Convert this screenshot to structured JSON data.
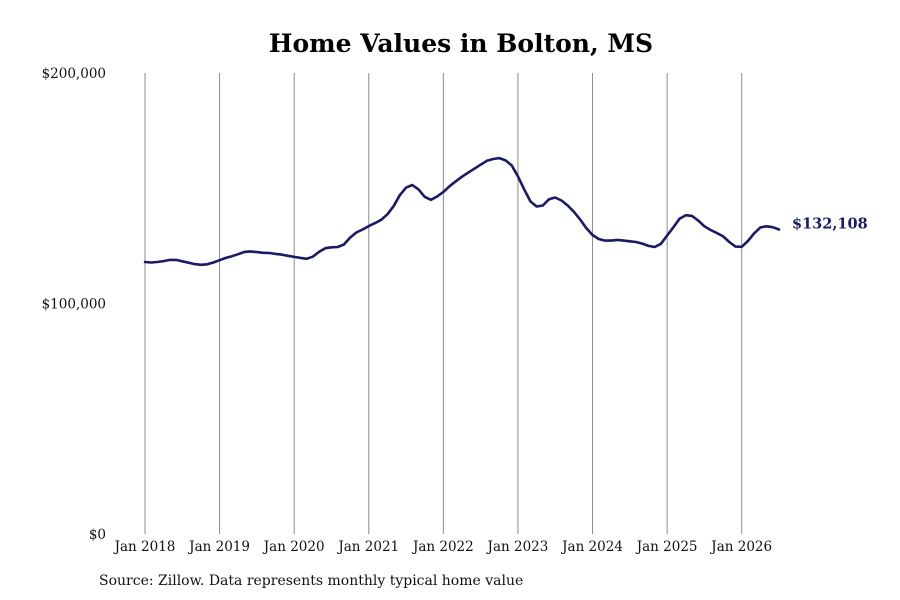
{
  "chart_data": {
    "type": "line",
    "title": "Home Values in Bolton, MS",
    "xlabel": "",
    "ylabel": "",
    "y_ticks": [
      {
        "value": 0,
        "label": "$0"
      },
      {
        "value": 100000,
        "label": "$100,000"
      },
      {
        "value": 200000,
        "label": "$200,000"
      }
    ],
    "ylim": [
      0,
      200000
    ],
    "xlim": [
      "2018-01",
      "2026-07"
    ],
    "x_ticks": [
      {
        "date": "2018-01",
        "label": "Jan 2018"
      },
      {
        "date": "2019-01",
        "label": "Jan 2019"
      },
      {
        "date": "2020-01",
        "label": "Jan 2020"
      },
      {
        "date": "2021-01",
        "label": "Jan 2021"
      },
      {
        "date": "2022-01",
        "label": "Jan 2022"
      },
      {
        "date": "2023-01",
        "label": "Jan 2023"
      },
      {
        "date": "2024-01",
        "label": "Jan 2024"
      },
      {
        "date": "2025-01",
        "label": "Jan 2025"
      },
      {
        "date": "2026-01",
        "label": "Jan 2026"
      }
    ],
    "grid": "vertical",
    "line_color": "#1a1a66",
    "end_label": "$132,108",
    "series": [
      {
        "x": [
          "2018-01",
          "2018-02",
          "2018-03",
          "2018-04",
          "2018-05",
          "2018-06",
          "2018-07",
          "2018-08",
          "2018-09",
          "2018-10",
          "2018-11",
          "2018-12",
          "2019-01",
          "2019-02",
          "2019-03",
          "2019-04",
          "2019-05",
          "2019-06",
          "2019-07",
          "2019-08",
          "2019-09",
          "2019-10",
          "2019-11",
          "2019-12",
          "2020-01",
          "2020-02",
          "2020-03",
          "2020-04",
          "2020-05",
          "2020-06",
          "2020-07",
          "2020-08",
          "2020-09",
          "2020-10",
          "2020-11",
          "2020-12",
          "2021-01",
          "2021-02",
          "2021-03",
          "2021-04",
          "2021-05",
          "2021-06",
          "2021-07",
          "2021-08",
          "2021-09",
          "2021-10",
          "2021-11",
          "2021-12",
          "2022-01",
          "2022-02",
          "2022-03",
          "2022-04",
          "2022-05",
          "2022-06",
          "2022-07",
          "2022-08",
          "2022-09",
          "2022-10",
          "2022-11",
          "2022-12",
          "2023-01",
          "2023-02",
          "2023-03",
          "2023-04",
          "2023-05",
          "2023-06",
          "2023-07",
          "2023-08",
          "2023-09",
          "2023-10",
          "2023-11",
          "2023-12",
          "2024-01",
          "2024-02",
          "2024-03",
          "2024-04",
          "2024-05",
          "2024-06",
          "2024-07",
          "2024-08",
          "2024-09",
          "2024-10",
          "2024-11",
          "2024-12",
          "2025-01",
          "2025-02",
          "2025-03",
          "2025-04",
          "2025-05",
          "2025-06",
          "2025-07",
          "2025-08",
          "2025-09",
          "2025-10",
          "2025-11",
          "2025-12",
          "2026-01",
          "2026-02",
          "2026-03",
          "2026-04",
          "2026-05",
          "2026-06",
          "2026-07"
        ],
        "values": [
          118000,
          117800,
          118000,
          118400,
          118900,
          118900,
          118300,
          117700,
          117100,
          116800,
          117000,
          117800,
          118800,
          119800,
          120500,
          121400,
          122400,
          122600,
          122300,
          122000,
          121900,
          121500,
          121200,
          120700,
          120200,
          119800,
          119400,
          120300,
          122400,
          124000,
          124400,
          124500,
          125600,
          128600,
          130800,
          132100,
          133600,
          134900,
          136300,
          138700,
          142200,
          147000,
          150300,
          151400,
          149500,
          146300,
          145000,
          146400,
          148400,
          150900,
          153000,
          155000,
          156800,
          158500,
          160200,
          161900,
          162700,
          163100,
          162100,
          159900,
          155200,
          149500,
          144300,
          142100,
          142500,
          145200,
          146000,
          144700,
          142500,
          139800,
          136500,
          132700,
          129700,
          128000,
          127300,
          127300,
          127600,
          127300,
          127000,
          126700,
          126000,
          125000,
          124500,
          125900,
          129500,
          133000,
          136800,
          138300,
          138000,
          136000,
          133500,
          131900,
          130600,
          129100,
          126700,
          124700,
          124600,
          127100,
          130400,
          133000,
          133500,
          133100,
          132108
        ]
      }
    ]
  },
  "source_text": "Source: Zillow. Data represents monthly typical home value"
}
